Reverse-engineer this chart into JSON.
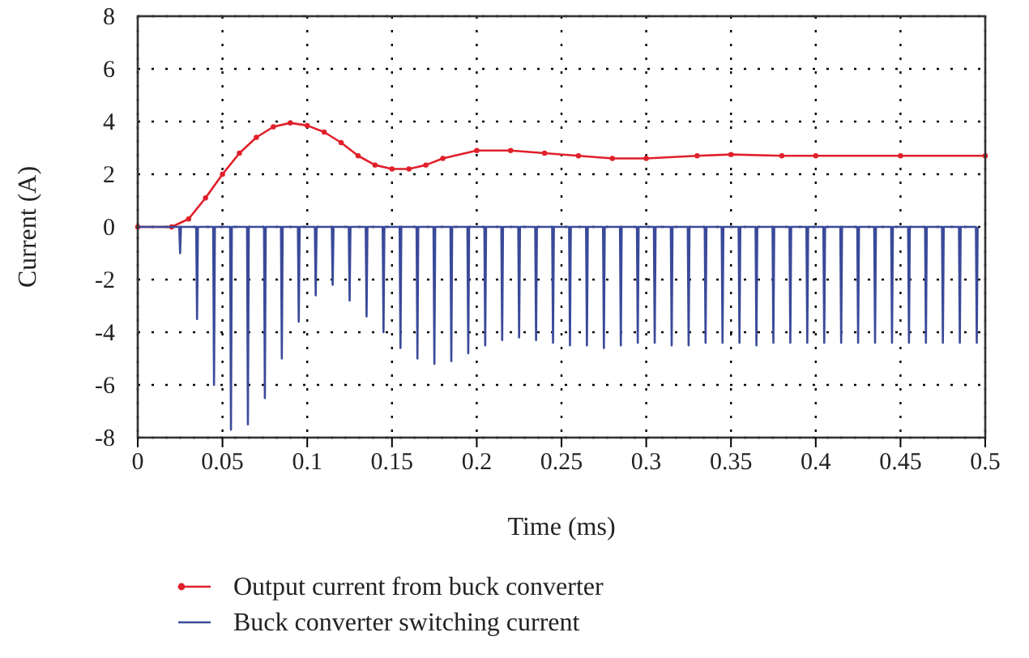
{
  "chart_data": {
    "type": "line",
    "xlabel": "Time (ms)",
    "ylabel": "Current (A)",
    "xlim": [
      0,
      0.5
    ],
    "xticks": [
      0,
      0.05,
      0.1,
      0.15,
      0.2,
      0.25,
      0.3,
      0.35,
      0.4,
      0.45,
      0.5
    ],
    "ylim": [
      -8,
      8
    ],
    "yticks": [
      -8,
      -6,
      -4,
      -2,
      0,
      2,
      4,
      6,
      8
    ],
    "grid": true,
    "legend": "bottom",
    "line_style": "solid",
    "series": [
      {
        "name": "Output current from buck converter",
        "color": "#e0202a",
        "marker": "circle",
        "x": [
          0,
          0.02,
          0.03,
          0.04,
          0.05,
          0.06,
          0.07,
          0.08,
          0.09,
          0.1,
          0.11,
          0.12,
          0.13,
          0.14,
          0.15,
          0.16,
          0.17,
          0.18,
          0.2,
          0.22,
          0.24,
          0.26,
          0.28,
          0.3,
          0.33,
          0.35,
          0.38,
          0.4,
          0.45,
          0.5
        ],
        "values": [
          0,
          0,
          0.3,
          1.1,
          2,
          2.8,
          3.4,
          3.8,
          3.95,
          3.85,
          3.6,
          3.2,
          2.7,
          2.35,
          2.2,
          2.2,
          2.35,
          2.6,
          2.9,
          2.9,
          2.8,
          2.7,
          2.6,
          2.6,
          2.7,
          2.75,
          2.7,
          2.7,
          2.7,
          2.7
        ]
      },
      {
        "name": "Buck converter switching current",
        "color": "#3a4a9a",
        "marker": "none",
        "x": [
          0,
          0.0245,
          0.025,
          0.0255,
          0.0345,
          0.035,
          0.0355,
          0.0445,
          0.045,
          0.0455,
          0.0545,
          0.055,
          0.0555,
          0.0645,
          0.065,
          0.0655,
          0.0745,
          0.075,
          0.0755,
          0.0845,
          0.085,
          0.0855,
          0.0945,
          0.095,
          0.0955,
          0.1045,
          0.105,
          0.1055,
          0.1145,
          0.115,
          0.1155,
          0.1245,
          0.125,
          0.1255,
          0.1345,
          0.135,
          0.1355,
          0.1445,
          0.145,
          0.1455,
          0.1545,
          0.155,
          0.1555,
          0.1645,
          0.165,
          0.1655,
          0.1745,
          0.175,
          0.1755,
          0.1845,
          0.185,
          0.1855,
          0.1945,
          0.195,
          0.1955,
          0.2045,
          0.205,
          0.2055,
          0.2145,
          0.215,
          0.2155,
          0.2245,
          0.225,
          0.2255,
          0.2345,
          0.235,
          0.2355,
          0.2445,
          0.245,
          0.2455,
          0.2545,
          0.255,
          0.2555,
          0.2645,
          0.265,
          0.2655,
          0.2745,
          0.275,
          0.2755,
          0.2845,
          0.285,
          0.2855,
          0.2945,
          0.295,
          0.2955,
          0.3045,
          0.305,
          0.3055,
          0.3145,
          0.315,
          0.3155,
          0.3245,
          0.325,
          0.3255,
          0.3345,
          0.335,
          0.3355,
          0.3445,
          0.345,
          0.3455,
          0.3545,
          0.355,
          0.3555,
          0.3645,
          0.365,
          0.3655,
          0.3745,
          0.375,
          0.3755,
          0.3845,
          0.385,
          0.3855,
          0.3945,
          0.395,
          0.3955,
          0.4045,
          0.405,
          0.4055,
          0.4145,
          0.415,
          0.4155,
          0.4245,
          0.425,
          0.4255,
          0.4345,
          0.435,
          0.4355,
          0.4445,
          0.445,
          0.4455,
          0.4545,
          0.455,
          0.4555,
          0.4645,
          0.465,
          0.4655,
          0.4745,
          0.475,
          0.4755,
          0.4845,
          0.485,
          0.4855,
          0.4945,
          0.495,
          0.4955
        ],
        "values": [
          0,
          0,
          -1,
          0,
          0,
          -3.5,
          0,
          0,
          -6,
          0,
          0,
          -7.7,
          0,
          0,
          -7.5,
          0,
          0,
          -6.5,
          0,
          0,
          -5,
          0,
          0,
          -3.6,
          0,
          0,
          -2.6,
          0,
          0,
          -2.2,
          0,
          0,
          -2.8,
          0,
          0,
          -3.4,
          0,
          0,
          -4,
          0,
          0,
          -4.6,
          0,
          0,
          -5,
          0,
          0,
          -5.2,
          0,
          0,
          -5.1,
          0,
          0,
          -4.8,
          0,
          0,
          -4.5,
          0,
          0,
          -4.3,
          0,
          0,
          -4.2,
          0,
          0,
          -4.3,
          0,
          0,
          -4.4,
          0,
          0,
          -4.5,
          0,
          0,
          -4.5,
          0,
          0,
          -4.6,
          0,
          0,
          -4.5,
          0,
          0,
          -4.4,
          0,
          0,
          -4.4,
          0,
          0,
          -4.5,
          0,
          0,
          -4.5,
          0,
          0,
          -4.4,
          0,
          0,
          -4.4,
          0,
          0,
          -4.4,
          0,
          0,
          -4.5,
          0,
          0,
          -4.4,
          0,
          0,
          -4.4,
          0,
          0,
          -4.4,
          0,
          0,
          -4.4,
          0,
          0,
          -4.4,
          0,
          0,
          -4.4,
          0,
          0,
          -4.4,
          0,
          0,
          -4.4,
          0,
          0,
          -4.4,
          0,
          0,
          -4.4,
          0,
          0,
          -4.4,
          0,
          0,
          -4.4,
          0,
          0,
          -4.4,
          0
        ]
      }
    ]
  }
}
